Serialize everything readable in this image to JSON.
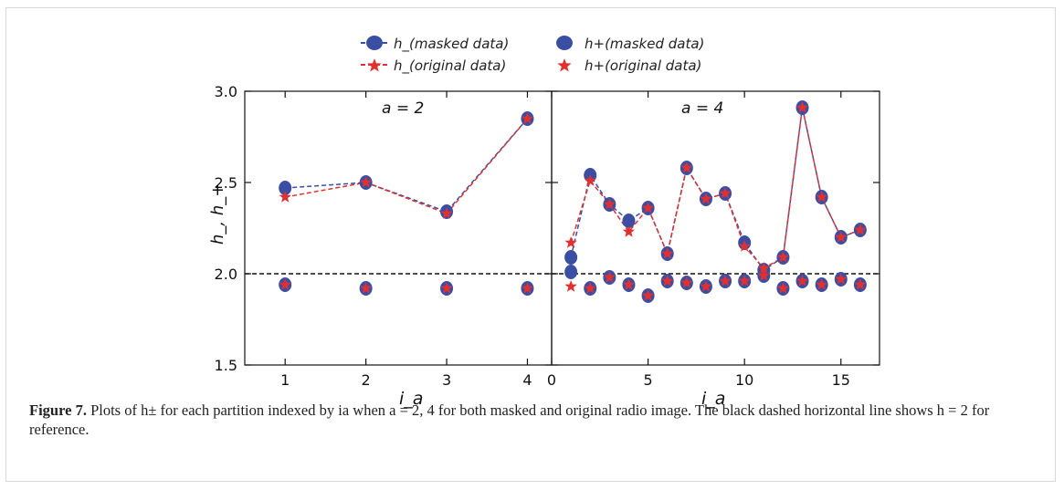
{
  "chart_data": [
    {
      "type": "line",
      "panel_label": "a = 2",
      "ylabel": "h_, h_+",
      "xlabel": "i_a",
      "xlim": [
        0.5,
        4.3
      ],
      "ylim": [
        1.5,
        3.0
      ],
      "x_ticks": [
        "1",
        "2",
        "3",
        "4"
      ],
      "y_ticks": [
        "1.5",
        "2.0",
        "2.5",
        "3.0"
      ],
      "reference_line": 2.0,
      "series": [
        {
          "name": "h_(masked data)",
          "x": [
            1,
            2,
            3,
            4
          ],
          "y": [
            2.47,
            2.5,
            2.34,
            2.85
          ]
        },
        {
          "name": "h_(original data)",
          "x": [
            1,
            2,
            3,
            4
          ],
          "y": [
            2.42,
            2.5,
            2.33,
            2.85
          ]
        },
        {
          "name": "h+(masked data)",
          "x": [
            1,
            2,
            3,
            4
          ],
          "y": [
            1.94,
            1.92,
            1.92,
            1.92
          ]
        },
        {
          "name": "h+(original data)",
          "x": [
            1,
            2,
            3,
            4
          ],
          "y": [
            1.94,
            1.92,
            1.92,
            1.92
          ]
        }
      ]
    },
    {
      "type": "line",
      "panel_label": "a = 4",
      "xlabel": "i_a",
      "xlim": [
        0,
        17
      ],
      "ylim": [
        1.5,
        3.0
      ],
      "x_ticks": [
        "0",
        "5",
        "10",
        "15"
      ],
      "reference_line": 2.0,
      "series": [
        {
          "name": "h_(masked data)",
          "x": [
            1,
            2,
            3,
            4,
            5,
            6,
            7,
            8,
            9,
            10,
            11,
            12,
            13,
            14,
            15,
            16
          ],
          "y": [
            2.09,
            2.54,
            2.38,
            2.29,
            2.36,
            2.11,
            2.58,
            2.41,
            2.44,
            2.17,
            2.02,
            2.09,
            2.91,
            2.42,
            2.2,
            2.24
          ]
        },
        {
          "name": "h_(original data)",
          "x": [
            1,
            2,
            3,
            4,
            5,
            6,
            7,
            8,
            9,
            10,
            11,
            12,
            13,
            14,
            15,
            16
          ],
          "y": [
            2.17,
            2.51,
            2.38,
            2.23,
            2.36,
            2.11,
            2.58,
            2.41,
            2.44,
            2.15,
            2.03,
            2.09,
            2.91,
            2.42,
            2.2,
            2.24
          ]
        },
        {
          "name": "h+(masked data)",
          "x": [
            1,
            2,
            3,
            4,
            5,
            6,
            7,
            8,
            9,
            10,
            11,
            12,
            13,
            14,
            15,
            16
          ],
          "y": [
            2.01,
            1.92,
            1.98,
            1.94,
            1.88,
            1.96,
            1.95,
            1.93,
            1.96,
            1.96,
            1.99,
            1.92,
            1.96,
            1.94,
            1.97,
            1.94
          ]
        },
        {
          "name": "h+(original data)",
          "x": [
            1,
            2,
            3,
            4,
            5,
            6,
            7,
            8,
            9,
            10,
            11,
            12,
            13,
            14,
            15,
            16
          ],
          "y": [
            1.93,
            1.92,
            1.98,
            1.94,
            1.88,
            1.96,
            1.95,
            1.93,
            1.96,
            1.96,
            1.99,
            1.92,
            1.96,
            1.94,
            1.97,
            1.94
          ]
        }
      ]
    }
  ],
  "legend": {
    "items": [
      "h_(masked data)",
      "h_(original data)",
      "h+(masked data)",
      "h+(original data)"
    ]
  },
  "colors": {
    "masked": "#3a4fa3",
    "original": "#e03030",
    "reference": "#111111"
  },
  "caption": {
    "label": "Figure 7.",
    "text": "Plots of h± for each partition indexed by ia when a = 2, 4 for both masked and original radio image. The black dashed horizontal line shows h = 2 for reference."
  }
}
